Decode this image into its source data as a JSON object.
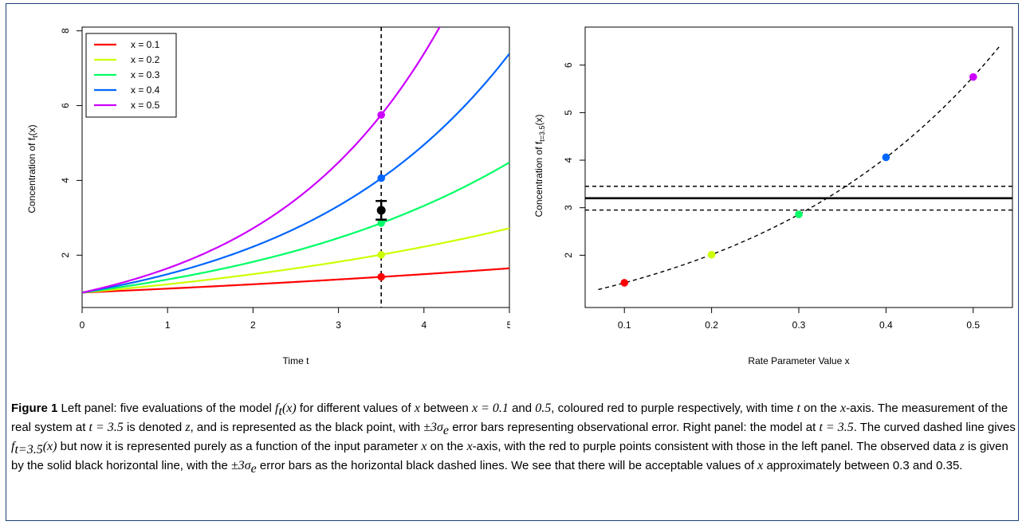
{
  "chart_data": [
    {
      "type": "line",
      "xlabel": "Time t",
      "ylabel": "Concentration of f",
      "ylabel_sub": "t",
      "ylabel_suffix": "(x)",
      "xlim": [
        0,
        5
      ],
      "ylim": [
        0.6,
        8.1
      ],
      "xticks": [
        "0",
        "1",
        "2",
        "3",
        "4",
        "5"
      ],
      "yticks": [
        "2",
        "4",
        "6",
        "8"
      ],
      "grid": false,
      "legend_position": "top-left",
      "series": [
        {
          "name": "x = 0.1",
          "color": "#ff0000",
          "rate": 0.1
        },
        {
          "name": "x = 0.2",
          "color": "#ccff00",
          "rate": 0.2
        },
        {
          "name": "x = 0.3",
          "color": "#00ff66",
          "rate": 0.3
        },
        {
          "name": "x = 0.4",
          "color": "#0066ff",
          "rate": 0.4
        },
        {
          "name": "x = 0.5",
          "color": "#cc00ff",
          "rate": 0.5
        }
      ],
      "vertical_line": {
        "x": 3.5,
        "style": "dashed"
      },
      "points": [
        {
          "x": 3.5,
          "y": 1.42,
          "color": "#ff0000"
        },
        {
          "x": 3.5,
          "y": 2.01,
          "color": "#ccff00"
        },
        {
          "x": 3.5,
          "y": 2.86,
          "color": "#00ff66"
        },
        {
          "x": 3.5,
          "y": 4.06,
          "color": "#0066ff"
        },
        {
          "x": 3.5,
          "y": 5.75,
          "color": "#cc00ff"
        }
      ],
      "observation": {
        "x": 3.5,
        "y": 3.2,
        "lower": 2.95,
        "upper": 3.45,
        "color": "#000000"
      }
    },
    {
      "type": "scatter",
      "xlabel": "Rate Parameter Value x",
      "ylabel": "Concentration of f",
      "ylabel_sub": "t=3.5",
      "ylabel_suffix": "(x)",
      "xlim": [
        0.055,
        0.545
      ],
      "ylim": [
        0.9,
        6.8
      ],
      "xticks": [
        "0.1",
        "0.2",
        "0.3",
        "0.4",
        "0.5"
      ],
      "yticks": [
        "2",
        "3",
        "4",
        "5",
        "6"
      ],
      "grid": false,
      "points": [
        {
          "x": 0.1,
          "y": 1.42,
          "color": "#ff0000"
        },
        {
          "x": 0.2,
          "y": 2.01,
          "color": "#ccff00"
        },
        {
          "x": 0.3,
          "y": 2.86,
          "color": "#00ff66"
        },
        {
          "x": 0.4,
          "y": 4.06,
          "color": "#0066ff"
        },
        {
          "x": 0.5,
          "y": 5.75,
          "color": "#cc00ff"
        }
      ],
      "curve": {
        "x_from": 0.07,
        "x_to": 0.53,
        "t": 3.5,
        "style": "dashed"
      },
      "hlines": [
        {
          "y": 3.2,
          "style": "solid"
        },
        {
          "y": 3.45,
          "style": "dashed"
        },
        {
          "y": 2.95,
          "style": "dashed"
        }
      ]
    }
  ],
  "caption": {
    "label": "Figure 1",
    "p1": "  Left panel: five evaluations of the model ",
    "m1": "f",
    "m1sub": "t",
    "m1b": "(x)",
    "p2": " for different values of ",
    "m2": "x",
    "p3": " between ",
    "m3": "x = 0.1",
    "p4": " and ",
    "m4": "0.5",
    "p5": ", coloured red to purple respectively, with time ",
    "m5": "t",
    "p6": " on the ",
    "m6": "x",
    "p7": "-axis. The measurement of the real system at ",
    "m7": "t = 3.5",
    "p8": " is denoted ",
    "m8": "z",
    "p9": ", and is represented as the black point, with ",
    "m9": "±3σ",
    "m9sub": "e",
    "p10": " error bars representing observational error. Right panel: the model at ",
    "m10": "t = 3.5",
    "p11": ". The curved dashed line gives ",
    "m11": "f",
    "m11sub": "t=3.5",
    "m11b": "(x)",
    "p12": " but now it is represented purely as a function of the input parameter ",
    "m12": "x",
    "p13": " on the ",
    "m13": "x",
    "p14": "-axis, with the red to purple points consistent with those in the left panel. The observed data ",
    "m14": "z",
    "p15": " is given by the solid black horizontal line, with the ",
    "m15": "±3σ",
    "m15sub": "e",
    "p16": " error bars as the horizontal black dashed lines. We see that there will be acceptable values of ",
    "m16": "x",
    "p17": " approximately between 0.3 and 0.35."
  }
}
